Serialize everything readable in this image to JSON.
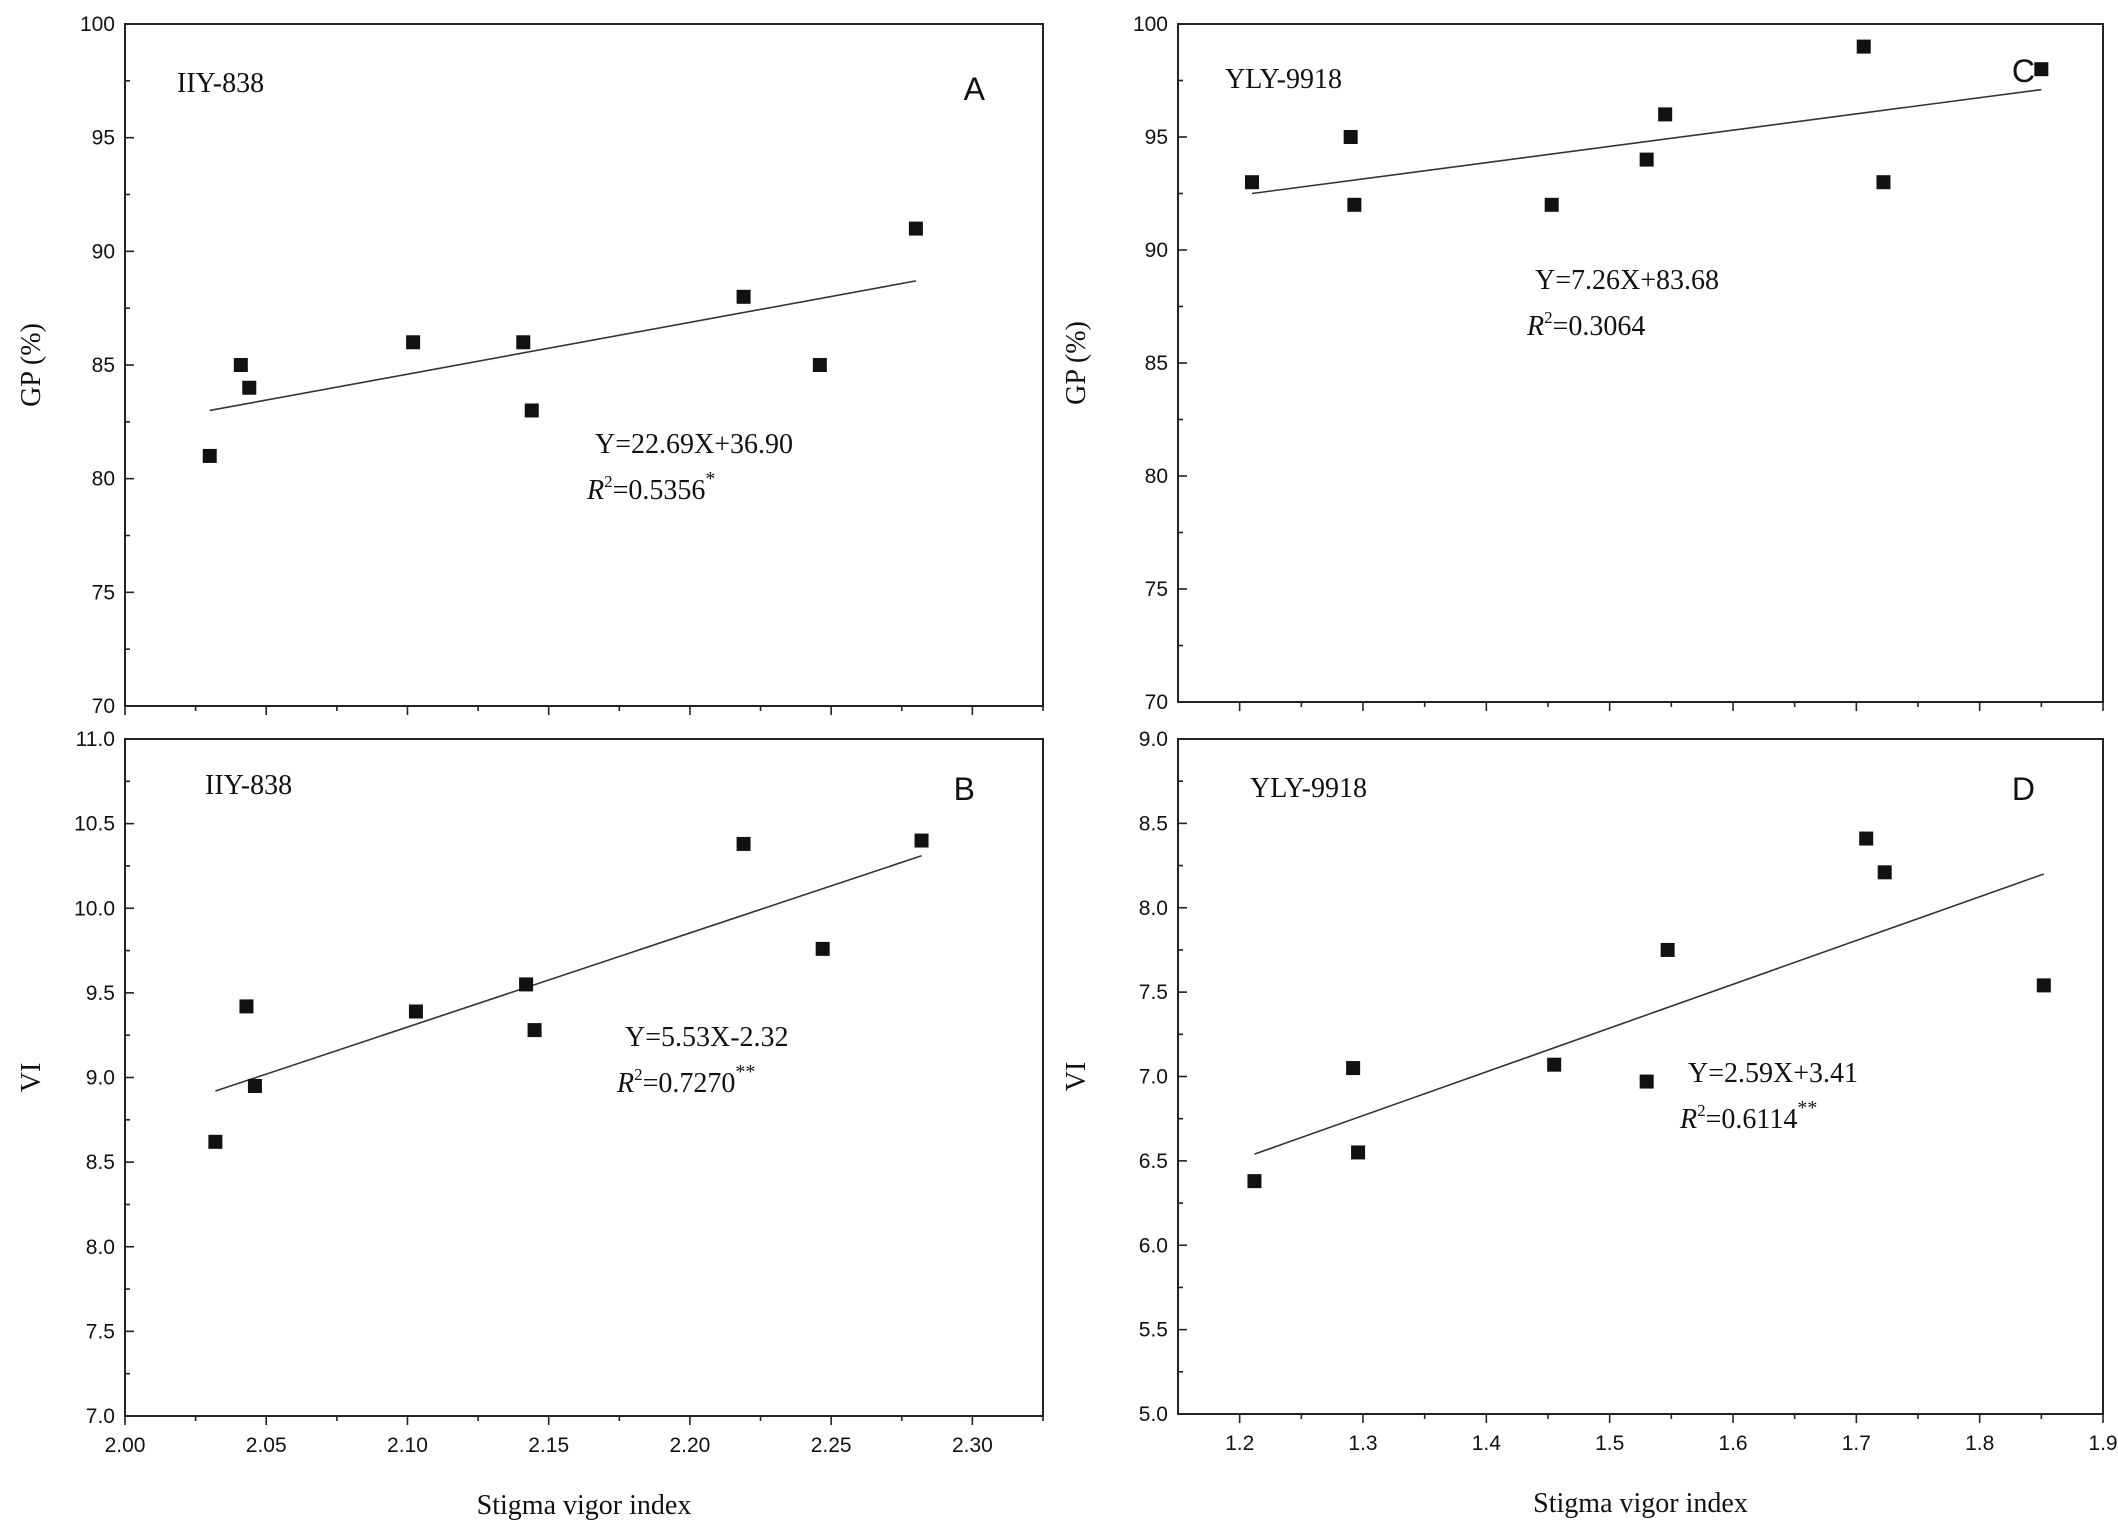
{
  "chart_data": [
    {
      "id": "A",
      "type": "scatter",
      "panel_letter": "A",
      "name": "IIY-838",
      "xlabel": "Stigma vigor index",
      "ylabel": "GP (%)",
      "xlim": [
        2.0,
        2.325
      ],
      "ylim": [
        70,
        100
      ],
      "xticks": [
        "2.00",
        "2.05",
        "2.10",
        "2.15",
        "2.20",
        "2.25",
        "2.30"
      ],
      "yticks": [
        "70",
        "75",
        "80",
        "85",
        "90",
        "95",
        "100"
      ],
      "show_x_tick_labels": false,
      "x": [
        2.03,
        2.041,
        2.044,
        2.102,
        2.141,
        2.144,
        2.219,
        2.246,
        2.28
      ],
      "y": [
        81,
        85,
        84,
        86,
        86,
        83,
        88,
        85,
        91
      ],
      "fit_line": {
        "x_start": 2.03,
        "x_end": 2.28,
        "y_start": 83.0,
        "y_end": 88.7
      },
      "equation": "Y=22.69X+36.90",
      "r2_prefix": "R",
      "r2_exp": "2",
      "r2_value": "=0.5356",
      "significance": "*"
    },
    {
      "id": "B",
      "type": "scatter",
      "panel_letter": "B",
      "name": "IIY-838",
      "xlabel": "Stigma vigor index",
      "ylabel": "VI",
      "xlim": [
        2.0,
        2.325
      ],
      "ylim": [
        7.0,
        11.0
      ],
      "xticks": [
        "2.00",
        "2.05",
        "2.10",
        "2.15",
        "2.20",
        "2.25",
        "2.30"
      ],
      "yticks": [
        "7.0",
        "7.5",
        "8.0",
        "8.5",
        "9.0",
        "9.5",
        "10.0",
        "10.5",
        "11.0"
      ],
      "show_x_tick_labels": true,
      "x": [
        2.032,
        2.043,
        2.046,
        2.103,
        2.142,
        2.145,
        2.219,
        2.247,
        2.282
      ],
      "y": [
        8.62,
        9.42,
        8.95,
        9.39,
        9.55,
        9.28,
        10.38,
        9.76,
        10.4
      ],
      "fit_line": {
        "x_start": 2.032,
        "x_end": 2.282,
        "y_start": 8.92,
        "y_end": 10.31
      },
      "equation": "Y=5.53X-2.32",
      "r2_prefix": "R",
      "r2_exp": "2",
      "r2_value": "=0.7270",
      "significance": "**"
    },
    {
      "id": "C",
      "type": "scatter",
      "panel_letter": "C",
      "name": "YLY-9918",
      "xlabel": "Stigma vigor index",
      "ylabel": "GP (%)",
      "xlim": [
        1.15,
        1.9
      ],
      "ylim": [
        70,
        100
      ],
      "xticks": [
        "1.2",
        "1.3",
        "1.4",
        "1.5",
        "1.6",
        "1.7",
        "1.8",
        "1.9"
      ],
      "yticks": [
        "70",
        "75",
        "80",
        "85",
        "90",
        "95",
        "100"
      ],
      "show_x_tick_labels": false,
      "x": [
        1.21,
        1.29,
        1.293,
        1.453,
        1.53,
        1.545,
        1.706,
        1.722,
        1.85
      ],
      "y": [
        93,
        95,
        92,
        92,
        94,
        96,
        99,
        93,
        98
      ],
      "fit_line": {
        "x_start": 1.21,
        "x_end": 1.85,
        "y_start": 92.5,
        "y_end": 97.1
      },
      "equation": "Y=7.26X+83.68",
      "r2_prefix": "R",
      "r2_exp": "2",
      "r2_value": "=0.3064",
      "significance": ""
    },
    {
      "id": "D",
      "type": "scatter",
      "panel_letter": "D",
      "name": "YLY-9918",
      "xlabel": "Stigma vigor index",
      "ylabel": "VI",
      "xlim": [
        1.15,
        1.9
      ],
      "ylim": [
        5.0,
        9.0
      ],
      "xticks": [
        "1.2",
        "1.3",
        "1.4",
        "1.5",
        "1.6",
        "1.7",
        "1.8",
        "1.9"
      ],
      "yticks": [
        "5.0",
        "5.5",
        "6.0",
        "6.5",
        "7.0",
        "7.5",
        "8.0",
        "8.5",
        "9.0"
      ],
      "show_x_tick_labels": true,
      "x": [
        1.212,
        1.292,
        1.296,
        1.455,
        1.53,
        1.547,
        1.708,
        1.723,
        1.852
      ],
      "y": [
        6.38,
        7.05,
        6.55,
        7.07,
        6.97,
        7.75,
        8.41,
        8.21,
        7.54
      ],
      "fit_line": {
        "x_start": 1.212,
        "x_end": 1.852,
        "y_start": 6.54,
        "y_end": 8.2
      },
      "equation": "Y=2.59X+3.41",
      "r2_prefix": "R",
      "r2_exp": "2",
      "r2_value": "=0.6114",
      "significance": "**"
    }
  ]
}
